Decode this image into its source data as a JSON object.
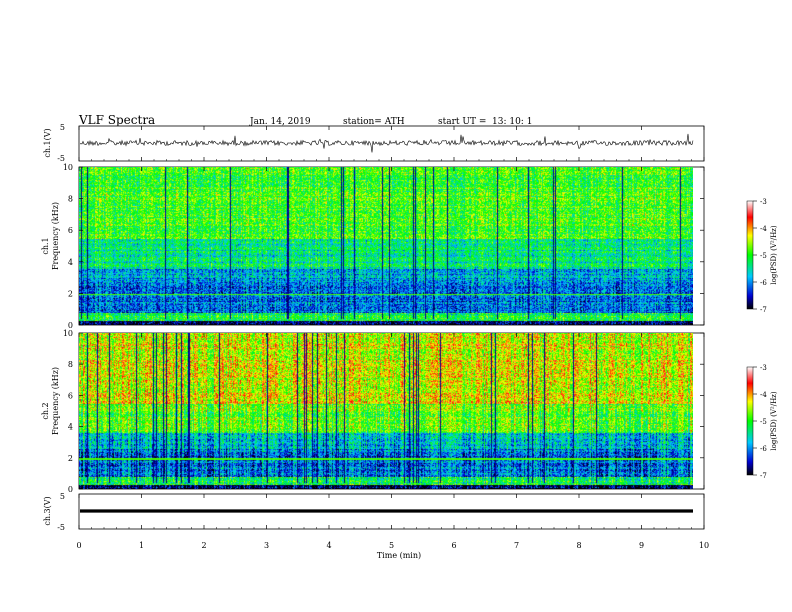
{
  "header": {
    "title": "VLF  Spectra",
    "date": "Jan. 14, 2019",
    "station": "station= ATH",
    "start_label": "start  UT  =",
    "start_time": "13: 10: 1"
  },
  "chart_data": [
    {
      "type": "line",
      "panel": "ch1-waveform",
      "ylabel": "ch.1(V)",
      "ylim": [
        -5,
        5
      ],
      "yticks": [
        "5",
        "-5"
      ],
      "x": [
        0,
        9.8
      ],
      "series": [
        {
          "values_note_level": 0
        }
      ]
    },
    {
      "type": "heatmap",
      "panel": "ch1-spectrogram",
      "ylabel": "ch.1",
      "ylabel2": "Frequency  (kHz)",
      "ylim": [
        0,
        10
      ],
      "yticks": [
        "0",
        "2",
        "4",
        "6",
        "8",
        "10"
      ],
      "colorbar": {
        "label": "log(PSD) (V²/Hz)",
        "range": [
          -7,
          -3
        ],
        "ticks": [
          "-3",
          "-4",
          "-5",
          "-6",
          "-7"
        ]
      }
    },
    {
      "type": "heatmap",
      "panel": "ch2-spectrogram",
      "ylabel": "ch.2",
      "ylabel2": "Frequency  (kHz)",
      "ylim": [
        0,
        10
      ],
      "yticks": [
        "0",
        "2",
        "4",
        "6",
        "8",
        "10"
      ],
      "colorbar": {
        "label": "log(PSD) (V²/Hz)",
        "range": [
          -7,
          -3
        ],
        "ticks": [
          "-3",
          "-4",
          "-5",
          "-6",
          "-7"
        ]
      }
    },
    {
      "type": "line",
      "panel": "ch3-waveform",
      "ylabel": "ch.3(V)",
      "ylim": [
        -5,
        5
      ],
      "yticks": [
        "5",
        "-5"
      ]
    }
  ],
  "xaxis": {
    "label": "Time  (min)",
    "range": [
      0,
      10
    ],
    "ticks": [
      "0",
      "1",
      "2",
      "3",
      "4",
      "5",
      "6",
      "7",
      "8",
      "9",
      "10"
    ]
  },
  "colors": {
    "colormap": [
      "#000000",
      "#0000ff",
      "#00e6ff",
      "#00ff00",
      "#ffff00",
      "#ff0000",
      "#ffffff"
    ]
  }
}
